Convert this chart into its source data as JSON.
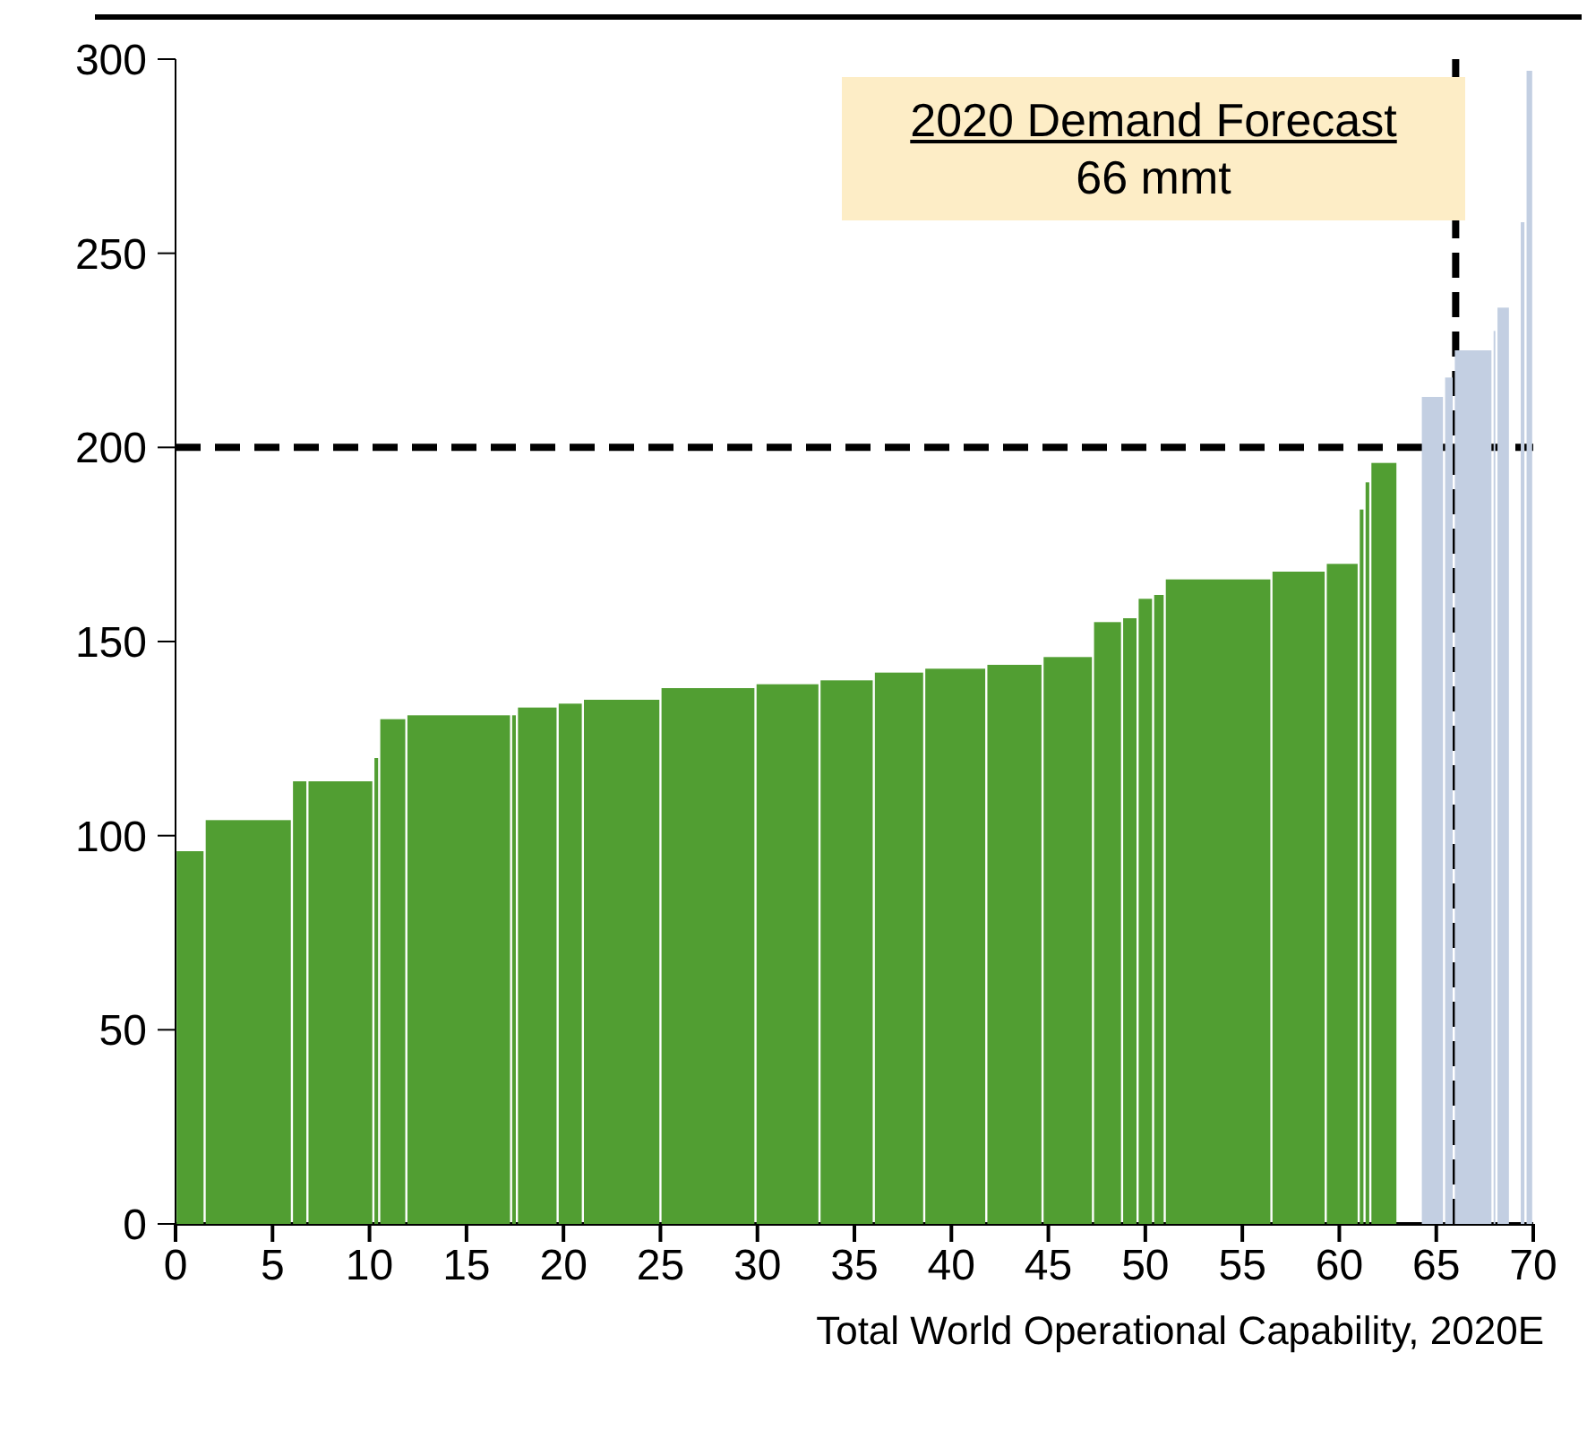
{
  "chart_data": {
    "type": "histogram",
    "bins": [
      0,
      1.5,
      6.0,
      6.8,
      10.2,
      10.5,
      11.9,
      17.3,
      17.6,
      19.7,
      21.0,
      25.0,
      29.9,
      33.2,
      36.0,
      38.6,
      41.8,
      44.7,
      47.3,
      48.8,
      49.6,
      50.4,
      51.0,
      56.5,
      59.3,
      61.0,
      61.3,
      61.6,
      63.0,
      64.2,
      65.4,
      65.9,
      67.9,
      68.1,
      68.8,
      69.3,
      69.6,
      70.0
    ],
    "values": [
      96,
      104,
      114,
      114,
      120,
      130,
      131,
      131,
      133,
      134,
      135,
      138,
      139,
      140,
      142,
      143,
      144,
      146,
      155,
      156,
      161,
      162,
      166,
      168,
      170,
      184,
      191,
      196,
      null,
      213,
      218,
      225,
      230,
      236,
      null,
      258,
      297
    ],
    "colors": [
      "#519e32",
      "#519e32",
      "#519e32",
      "#519e32",
      "#519e32",
      "#519e32",
      "#519e32",
      "#519e32",
      "#519e32",
      "#519e32",
      "#519e32",
      "#519e32",
      "#519e32",
      "#519e32",
      "#519e32",
      "#519e32",
      "#519e32",
      "#519e32",
      "#519e32",
      "#519e32",
      "#519e32",
      "#519e32",
      "#519e32",
      "#519e32",
      "#519e32",
      "#519e32",
      "#519e32",
      "#519e32",
      null,
      "#c3cfe2",
      "#c3cfe2",
      "#c3cfe2",
      "#c3cfe2",
      "#c3cfe2",
      null,
      "#c3cfe2",
      "#c3cfe2"
    ],
    "xlabel": "Total World Operational Capability, 2020E",
    "xlim": [
      0,
      70
    ],
    "xticks": [
      0,
      5,
      10,
      15,
      20,
      25,
      30,
      35,
      40,
      45,
      50,
      55,
      60,
      65,
      70
    ],
    "ylim": [
      0,
      300
    ],
    "yticks": [
      0,
      50,
      100,
      150,
      200,
      250,
      300
    ],
    "grid": false,
    "ref_lines": [
      {
        "axis": "y",
        "value": 200,
        "color": "#000000",
        "line_style": "dashed"
      },
      {
        "axis": "x",
        "value": 66,
        "color": "#000000",
        "line_style": "dashed"
      }
    ],
    "annotations": [
      "2020 Demand Forecast",
      "66 mmt"
    ]
  }
}
